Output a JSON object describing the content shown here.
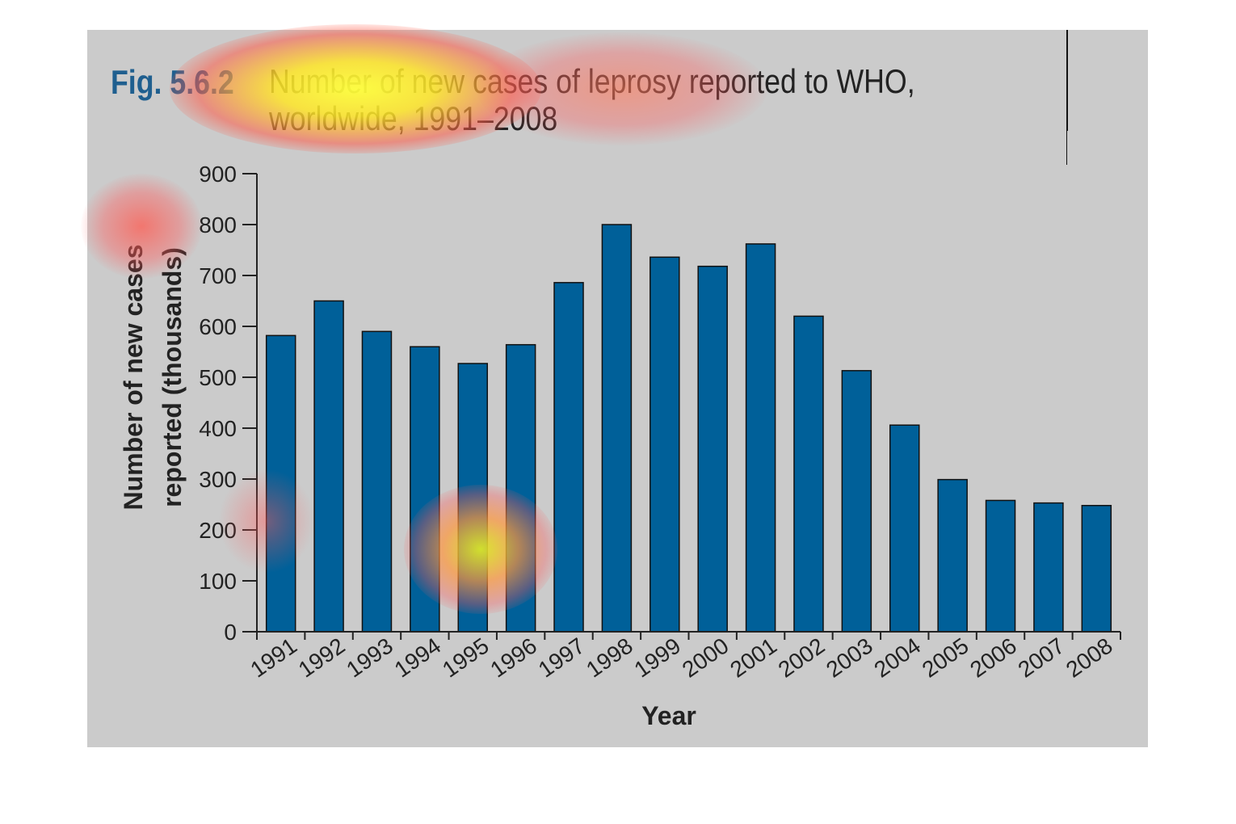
{
  "figure": {
    "label": "Fig. 5.6.2",
    "title_line1": "Number of new cases of leprosy reported to WHO,",
    "title_line2": "worldwide, 1991–2008"
  },
  "colors": {
    "bar": "#006099",
    "panel": "#cbcbcb",
    "label": "#1f5f8f"
  },
  "chart_data": {
    "type": "bar",
    "categories": [
      "1991",
      "1992",
      "1993",
      "1994",
      "1995",
      "1996",
      "1997",
      "1998",
      "1999",
      "2000",
      "2001",
      "2002",
      "2003",
      "2004",
      "2005",
      "2006",
      "2007",
      "2008"
    ],
    "values": [
      582,
      650,
      590,
      560,
      527,
      564,
      686,
      800,
      736,
      718,
      762,
      620,
      513,
      406,
      299,
      258,
      253,
      248
    ],
    "xlabel": "Year",
    "ylabel_line1": "Number of new cases",
    "ylabel_line2": "reported (thousands)",
    "ylim": [
      0,
      900
    ],
    "yticks": [
      0,
      100,
      200,
      300,
      400,
      500,
      600,
      700,
      800,
      900
    ],
    "grid": false,
    "legend": "none"
  }
}
